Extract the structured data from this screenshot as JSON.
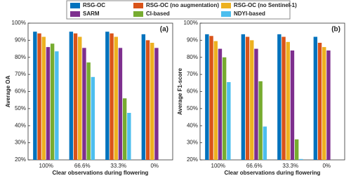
{
  "chart_data": [
    {
      "type": "bar",
      "panel_label": "(a)",
      "ylabel": "Average OA",
      "xlabel": "Clear observations during flowering",
      "categories": [
        "100%",
        "66.6%",
        "33.3%",
        "0%"
      ],
      "ylim": [
        20,
        100
      ],
      "yticks": [
        {
          "value": 20,
          "label": "20%"
        },
        {
          "value": 30,
          "label": "30%"
        },
        {
          "value": 40,
          "label": "40%"
        },
        {
          "value": 50,
          "label": "50%"
        },
        {
          "value": 60,
          "label": "60%"
        },
        {
          "value": 70,
          "label": "70%"
        },
        {
          "value": 80,
          "label": "80%"
        },
        {
          "value": 90,
          "label": "90%"
        },
        {
          "value": 100,
          "label": "100%"
        }
      ],
      "grid": false,
      "series": [
        {
          "name": "RSG-OC",
          "color": "#0072bd",
          "values": [
            95,
            95,
            95,
            93.5
          ]
        },
        {
          "name": "RSG-OC (no augmentation)",
          "color": "#d95319",
          "values": [
            94,
            94,
            94,
            90
          ]
        },
        {
          "name": "RSG-OC (no Sentinel-1)",
          "color": "#edb120",
          "values": [
            92,
            92,
            92,
            88.5
          ]
        },
        {
          "name": "SARM",
          "color": "#7e2f8e",
          "values": [
            86,
            85.5,
            85.5,
            85.5
          ]
        },
        {
          "name": "CI-based",
          "color": "#77ac30",
          "values": [
            88,
            77,
            56,
            null
          ]
        },
        {
          "name": "NDYI-based",
          "color": "#4dbeee",
          "values": [
            83.5,
            68.5,
            47.5,
            null
          ]
        }
      ]
    },
    {
      "type": "bar",
      "panel_label": "(b)",
      "ylabel": "Average F1-score",
      "xlabel": "Clear observations during flowering",
      "categories": [
        "100%",
        "66.6%",
        "33.3%",
        "0%"
      ],
      "ylim": [
        20,
        100
      ],
      "yticks": [
        {
          "value": 20,
          "label": "20%"
        },
        {
          "value": 30,
          "label": "30%"
        },
        {
          "value": 40,
          "label": "40%"
        },
        {
          "value": 50,
          "label": "50%"
        },
        {
          "value": 60,
          "label": "60%"
        },
        {
          "value": 70,
          "label": "70%"
        },
        {
          "value": 80,
          "label": "80%"
        },
        {
          "value": 90,
          "label": "90%"
        },
        {
          "value": 100,
          "label": "100%"
        }
      ],
      "grid": false,
      "series": [
        {
          "color": "#0072bd",
          "values": [
            93.5,
            93.5,
            93.5,
            92
          ]
        },
        {
          "color": "#d95319",
          "values": [
            92.5,
            92,
            92,
            88.5
          ]
        },
        {
          "color": "#edb120",
          "values": [
            89.5,
            90,
            89,
            86
          ]
        },
        {
          "color": "#7e2f8e",
          "values": [
            85,
            85,
            84,
            84
          ]
        },
        {
          "color": "#77ac30",
          "values": [
            80,
            66,
            32,
            null
          ]
        },
        {
          "color": "#4dbeee",
          "values": [
            65.5,
            39.5,
            20.5,
            null
          ]
        }
      ]
    }
  ]
}
